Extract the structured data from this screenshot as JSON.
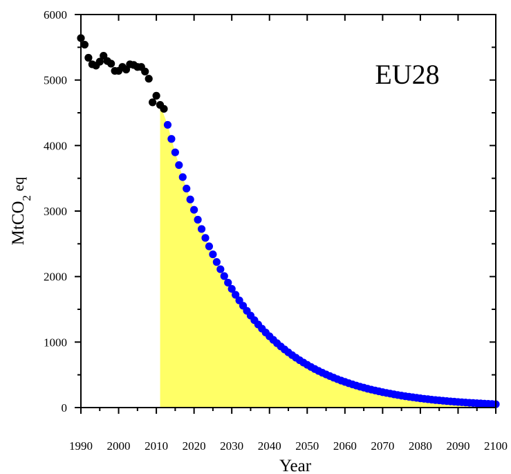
{
  "chart_data": {
    "type": "scatter",
    "annotation": "EU28",
    "xlabel": "Year",
    "ylabel": {
      "main": "MtCO",
      "subscript": "2",
      "suffix": " eq"
    },
    "xlim": [
      1990,
      2100
    ],
    "ylim": [
      0,
      6000
    ],
    "xticks": [
      1990,
      2000,
      2010,
      2020,
      2030,
      2040,
      2050,
      2060,
      2070,
      2080,
      2090,
      2100
    ],
    "yticks": [
      0,
      1000,
      2000,
      3000,
      4000,
      5000,
      6000
    ],
    "grid": false,
    "colors": {
      "historical": "#000000",
      "projection": "#0000ff",
      "fill": "#ffff66"
    },
    "fill_under_projection_from": 2011,
    "series": [
      {
        "role": "historical",
        "x": [
          1990,
          1991,
          1992,
          1993,
          1994,
          1995,
          1996,
          1997,
          1998,
          1999,
          2000,
          2001,
          2002,
          2003,
          2004,
          2005,
          2006,
          2007,
          2008,
          2009,
          2010,
          2011,
          2012
        ],
        "y": [
          5640,
          5540,
          5340,
          5240,
          5220,
          5280,
          5370,
          5290,
          5250,
          5140,
          5140,
          5200,
          5160,
          5240,
          5230,
          5200,
          5200,
          5130,
          5020,
          4660,
          4760,
          4620,
          4560
        ]
      },
      {
        "role": "projection",
        "x": [
          2013,
          2014,
          2015,
          2016,
          2017,
          2018,
          2019,
          2020,
          2021,
          2022,
          2023,
          2024,
          2025,
          2026,
          2027,
          2028,
          2029,
          2030,
          2031,
          2032,
          2033,
          2034,
          2035,
          2036,
          2037,
          2038,
          2039,
          2040,
          2041,
          2042,
          2043,
          2044,
          2045,
          2046,
          2047,
          2048,
          2049,
          2050,
          2051,
          2052,
          2053,
          2054,
          2055,
          2056,
          2057,
          2058,
          2059,
          2060,
          2061,
          2062,
          2063,
          2064,
          2065,
          2066,
          2067,
          2068,
          2069,
          2070,
          2071,
          2072,
          2073,
          2074,
          2075,
          2076,
          2077,
          2078,
          2079,
          2080,
          2081,
          2082,
          2083,
          2084,
          2085,
          2086,
          2087,
          2088,
          2089,
          2090,
          2091,
          2092,
          2093,
          2094,
          2095,
          2096,
          2097,
          2098,
          2099,
          2100
        ],
        "y": [
          4316,
          4101,
          3896,
          3702,
          3518,
          3343,
          3177,
          3019,
          2868,
          2726,
          2590,
          2461,
          2339,
          2222,
          2112,
          2007,
          1907,
          1812,
          1722,
          1636,
          1555,
          1477,
          1404,
          1334,
          1268,
          1205,
          1145,
          1088,
          1034,
          982,
          933,
          887,
          843,
          801,
          761,
          723,
          687,
          653,
          620,
          589,
          560,
          532,
          506,
          481,
          457,
          434,
          412,
          392,
          372,
          354,
          336,
          319,
          304,
          288,
          274,
          261,
          248,
          235,
          224,
          213,
          202,
          192,
          182,
          173,
          165,
          157,
          149,
          141,
          134,
          128,
          121,
          115,
          110,
          104,
          99,
          94,
          90,
          85,
          81,
          77,
          73,
          70,
          66,
          63,
          60,
          57,
          54,
          51
        ]
      }
    ]
  }
}
